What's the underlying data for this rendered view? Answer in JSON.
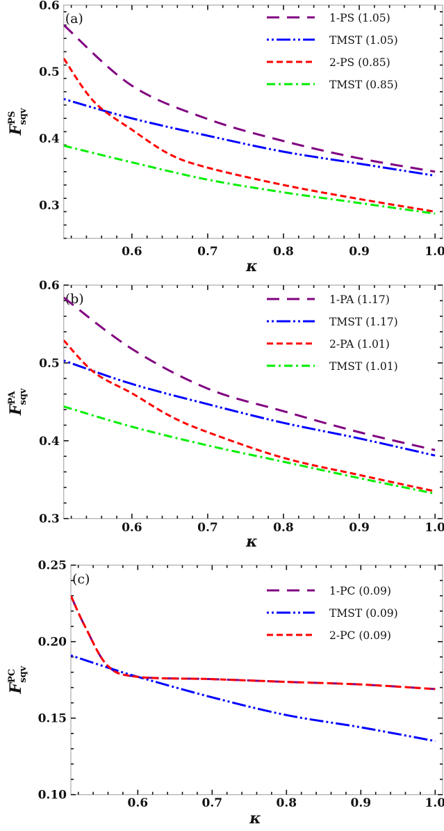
{
  "chart_data": [
    {
      "type": "line",
      "panel_label": "(a)",
      "xlabel": "κ",
      "ylabel": {
        "base": "F",
        "sup": "PS",
        "sub": "sqv"
      },
      "xlim": [
        0.51,
        1.01
      ],
      "ylim": [
        0.25,
        0.6
      ],
      "xticks": [
        "0.6",
        "0.7",
        "0.8",
        "0.9",
        "1.0"
      ],
      "yticks": [
        "0.3",
        "0.4",
        "0.5",
        "0.6"
      ],
      "legend_position": "top-right",
      "series": [
        {
          "name": "1-PS (1.05)",
          "color": "#800080",
          "style": "long-dash",
          "x": [
            0.51,
            0.6,
            0.7,
            0.8,
            0.9,
            1.0
          ],
          "y": [
            0.57,
            0.479,
            0.429,
            0.396,
            0.37,
            0.35
          ]
        },
        {
          "name": "TMST (1.05)",
          "color": "#0000ff",
          "style": "dot-dot-dash",
          "x": [
            0.51,
            0.6,
            0.7,
            0.8,
            0.9,
            1.0
          ],
          "y": [
            0.459,
            0.43,
            0.404,
            0.38,
            0.362,
            0.344
          ]
        },
        {
          "name": "2-PS (0.85)",
          "color": "#ff0000",
          "style": "dash",
          "x": [
            0.51,
            0.55,
            0.6,
            0.65,
            0.7,
            0.8,
            0.9,
            1.0
          ],
          "y": [
            0.52,
            0.455,
            0.413,
            0.376,
            0.356,
            0.33,
            0.309,
            0.29
          ]
        },
        {
          "name": "TMST (0.85)",
          "color": "#00ee00",
          "style": "dash-dot",
          "x": [
            0.51,
            0.6,
            0.7,
            0.8,
            0.9,
            1.0
          ],
          "y": [
            0.389,
            0.364,
            0.338,
            0.319,
            0.303,
            0.287
          ]
        }
      ]
    },
    {
      "type": "line",
      "panel_label": "(b)",
      "xlabel": "κ",
      "ylabel": {
        "base": "F",
        "sup": "PA",
        "sub": "sqv"
      },
      "xlim": [
        0.51,
        1.01
      ],
      "ylim": [
        0.3,
        0.6
      ],
      "xticks": [
        "0.6",
        "0.7",
        "0.8",
        "0.9",
        "1.0"
      ],
      "yticks": [
        "0.3",
        "0.4",
        "0.5",
        "0.6"
      ],
      "legend_position": "top-right",
      "series": [
        {
          "name": "1-PA (1.17)",
          "color": "#800080",
          "style": "long-dash",
          "x": [
            0.51,
            0.6,
            0.7,
            0.8,
            0.9,
            1.0
          ],
          "y": [
            0.584,
            0.518,
            0.467,
            0.438,
            0.411,
            0.388
          ]
        },
        {
          "name": "TMST (1.17)",
          "color": "#0000ff",
          "style": "dot-dot-dash",
          "x": [
            0.51,
            0.6,
            0.7,
            0.8,
            0.9,
            1.0
          ],
          "y": [
            0.503,
            0.473,
            0.447,
            0.423,
            0.403,
            0.381
          ]
        },
        {
          "name": "2-PA (1.01)",
          "color": "#ff0000",
          "style": "dash",
          "x": [
            0.51,
            0.55,
            0.6,
            0.65,
            0.7,
            0.8,
            0.9,
            1.0
          ],
          "y": [
            0.529,
            0.488,
            0.461,
            0.432,
            0.411,
            0.378,
            0.356,
            0.335
          ]
        },
        {
          "name": "TMST (1.01)",
          "color": "#00ee00",
          "style": "dash-dot",
          "x": [
            0.51,
            0.6,
            0.7,
            0.8,
            0.9,
            1.0
          ],
          "y": [
            0.444,
            0.418,
            0.394,
            0.373,
            0.352,
            0.332
          ]
        }
      ]
    },
    {
      "type": "line",
      "panel_label": "(c)",
      "xlabel": "κ",
      "ylabel": {
        "base": "F",
        "sup": "PC",
        "sub": "sqv"
      },
      "xlim": [
        0.51,
        1.01
      ],
      "ylim": [
        0.1,
        0.25
      ],
      "xticks": [
        "0.6",
        "0.7",
        "0.8",
        "0.9",
        "1.0"
      ],
      "yticks": [
        "0.10",
        "0.15",
        "0.20",
        "0.25"
      ],
      "legend_position": "top-right",
      "series": [
        {
          "name": "1-PC (0.09)",
          "color": "#800080",
          "style": "long-dash",
          "x": [
            0.51,
            0.53,
            0.56,
            0.6,
            0.7,
            0.8,
            0.9,
            1.0
          ],
          "y": [
            0.23,
            0.209,
            0.184,
            0.177,
            0.1755,
            0.1737,
            0.172,
            0.169
          ]
        },
        {
          "name": "TMST (0.09)",
          "color": "#0000ff",
          "style": "dot-dot-dash",
          "x": [
            0.51,
            0.56,
            0.6,
            0.7,
            0.8,
            0.9,
            1.0
          ],
          "y": [
            0.191,
            0.183,
            0.177,
            0.1636,
            0.152,
            0.144,
            0.135
          ]
        },
        {
          "name": "2-PC (0.09)",
          "color": "#ff0000",
          "style": "dash",
          "x": [
            0.51,
            0.53,
            0.56,
            0.6,
            0.7,
            0.8,
            0.9,
            1.0
          ],
          "y": [
            0.23,
            0.209,
            0.184,
            0.177,
            0.1755,
            0.1737,
            0.172,
            0.169
          ]
        }
      ]
    }
  ]
}
